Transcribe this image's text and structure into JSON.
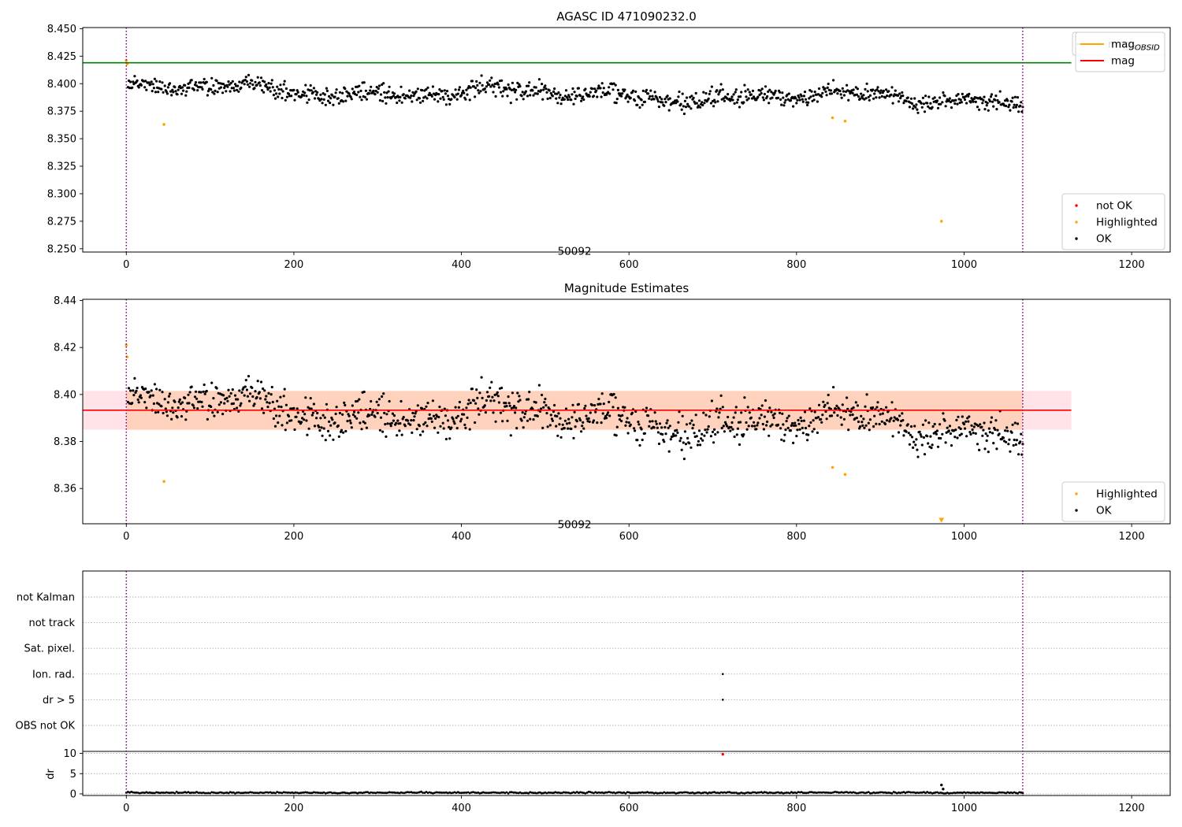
{
  "figure": {
    "vlines_x": [
      0,
      1070
    ],
    "vline_color": "#800080"
  },
  "chart_data": [
    {
      "id": "panel-agasc",
      "type": "scatter",
      "title": "AGASC ID 471090232.0",
      "annotation": {
        "text": "50092",
        "x": 535,
        "y": 8.2515
      },
      "xlim": [
        -52,
        1246
      ],
      "ylim": [
        8.247,
        8.451
      ],
      "xticks": [
        0,
        200,
        400,
        600,
        800,
        1000,
        1200
      ],
      "yticks": [
        8.25,
        8.275,
        8.3,
        8.325,
        8.35,
        8.375,
        8.4,
        8.425,
        8.45
      ],
      "ytick_format": 3,
      "hline": {
        "y": 8.419,
        "x_range": [
          -52,
          1128
        ],
        "color": "#008000",
        "label": "mag_AGASC"
      },
      "band": null,
      "legend_top": [
        {
          "label": "mag",
          "sub": "AGASC",
          "color": "#008000",
          "kind": "line"
        }
      ],
      "legend_bottom": [
        {
          "label": "not OK",
          "color": "#ff0000",
          "kind": "dot"
        },
        {
          "label": "Highlighted",
          "color": "#ffa500",
          "kind": "dot"
        },
        {
          "label": "OK",
          "color": "#000000",
          "kind": "dot"
        }
      ],
      "series": [
        {
          "name": "OK",
          "color": "#000000",
          "model": "mag"
        },
        {
          "name": "Highlighted",
          "color": "#ffa500",
          "points": [
            [
              0,
              8.421
            ],
            [
              1,
              8.418
            ],
            [
              45,
              8.363
            ],
            [
              843,
              8.369
            ],
            [
              858,
              8.366
            ],
            [
              973,
              8.275
            ]
          ]
        },
        {
          "name": "not OK",
          "color": "#ff0000",
          "points": []
        }
      ]
    },
    {
      "id": "panel-mag-estimates",
      "type": "scatter",
      "title": "Magnitude Estimates",
      "annotation": {
        "text": "50092",
        "x": 535,
        "y": 8.3465
      },
      "xlim": [
        -52,
        1246
      ],
      "ylim": [
        8.345,
        8.4405
      ],
      "xticks": [
        0,
        200,
        400,
        600,
        800,
        1000,
        1200
      ],
      "yticks": [
        8.36,
        8.38,
        8.4,
        8.42,
        8.44
      ],
      "ytick_format": 2,
      "hline": {
        "y": 8.3933,
        "x_range": [
          -52,
          1128
        ],
        "color": "#ff0000",
        "label": "mag"
      },
      "band": {
        "y_range": [
          8.385,
          8.4015
        ],
        "x_range": [
          -52,
          1128
        ],
        "x_inner": [
          0,
          1070
        ],
        "color_inner": "#ffd2bd",
        "color_outer": "#ffe3e8"
      },
      "legend_top": [
        {
          "label": "mag",
          "sub": "OBSID",
          "color": "#ffa500",
          "kind": "line"
        },
        {
          "label": "mag",
          "sub": "",
          "color": "#ff0000",
          "kind": "line"
        }
      ],
      "legend_bottom": [
        {
          "label": "Highlighted",
          "color": "#ffa500",
          "kind": "dot"
        },
        {
          "label": "OK",
          "color": "#000000",
          "kind": "dot"
        }
      ],
      "series": [
        {
          "name": "OK",
          "color": "#000000",
          "model": "mag"
        },
        {
          "name": "Highlighted",
          "color": "#ffa500",
          "points": [
            [
              0,
              8.421
            ],
            [
              1,
              8.416
            ],
            [
              45,
              8.363
            ],
            [
              843,
              8.369
            ],
            [
              858,
              8.366
            ]
          ]
        },
        {
          "name": "Highlighted (below range)",
          "color": "#ffa500",
          "marker": "triangle",
          "points": [
            [
              973,
              8.3465
            ]
          ]
        }
      ]
    },
    {
      "id": "panel-flags",
      "type": "scatter",
      "categories": [
        "not Kalman",
        "not track",
        "Sat. pixel.",
        "Ion. rad.",
        "dr > 5",
        "OBS not OK"
      ],
      "xlim": [
        -52,
        1246
      ],
      "flag_points": [
        {
          "category": "Ion. rad.",
          "x": 712
        },
        {
          "category": "dr > 5",
          "x": 712
        }
      ]
    },
    {
      "id": "panel-dr",
      "type": "scatter",
      "ylabel": "dr",
      "xlim": [
        -52,
        1246
      ],
      "ylim": [
        -0.4,
        10.5
      ],
      "xticks": [
        0,
        200,
        400,
        600,
        800,
        1000,
        1200
      ],
      "yticks": [
        0,
        5,
        10
      ],
      "series": [
        {
          "name": "dr",
          "color": "#000000",
          "model": "dr"
        },
        {
          "name": "dr (not OK)",
          "color": "#ff0000",
          "points": [
            [
              712,
              9.8
            ]
          ]
        },
        {
          "name": "dr (spike)",
          "color": "#000000",
          "points": [
            [
              973,
              2.2
            ],
            [
              975,
              1.2
            ]
          ]
        }
      ]
    }
  ]
}
